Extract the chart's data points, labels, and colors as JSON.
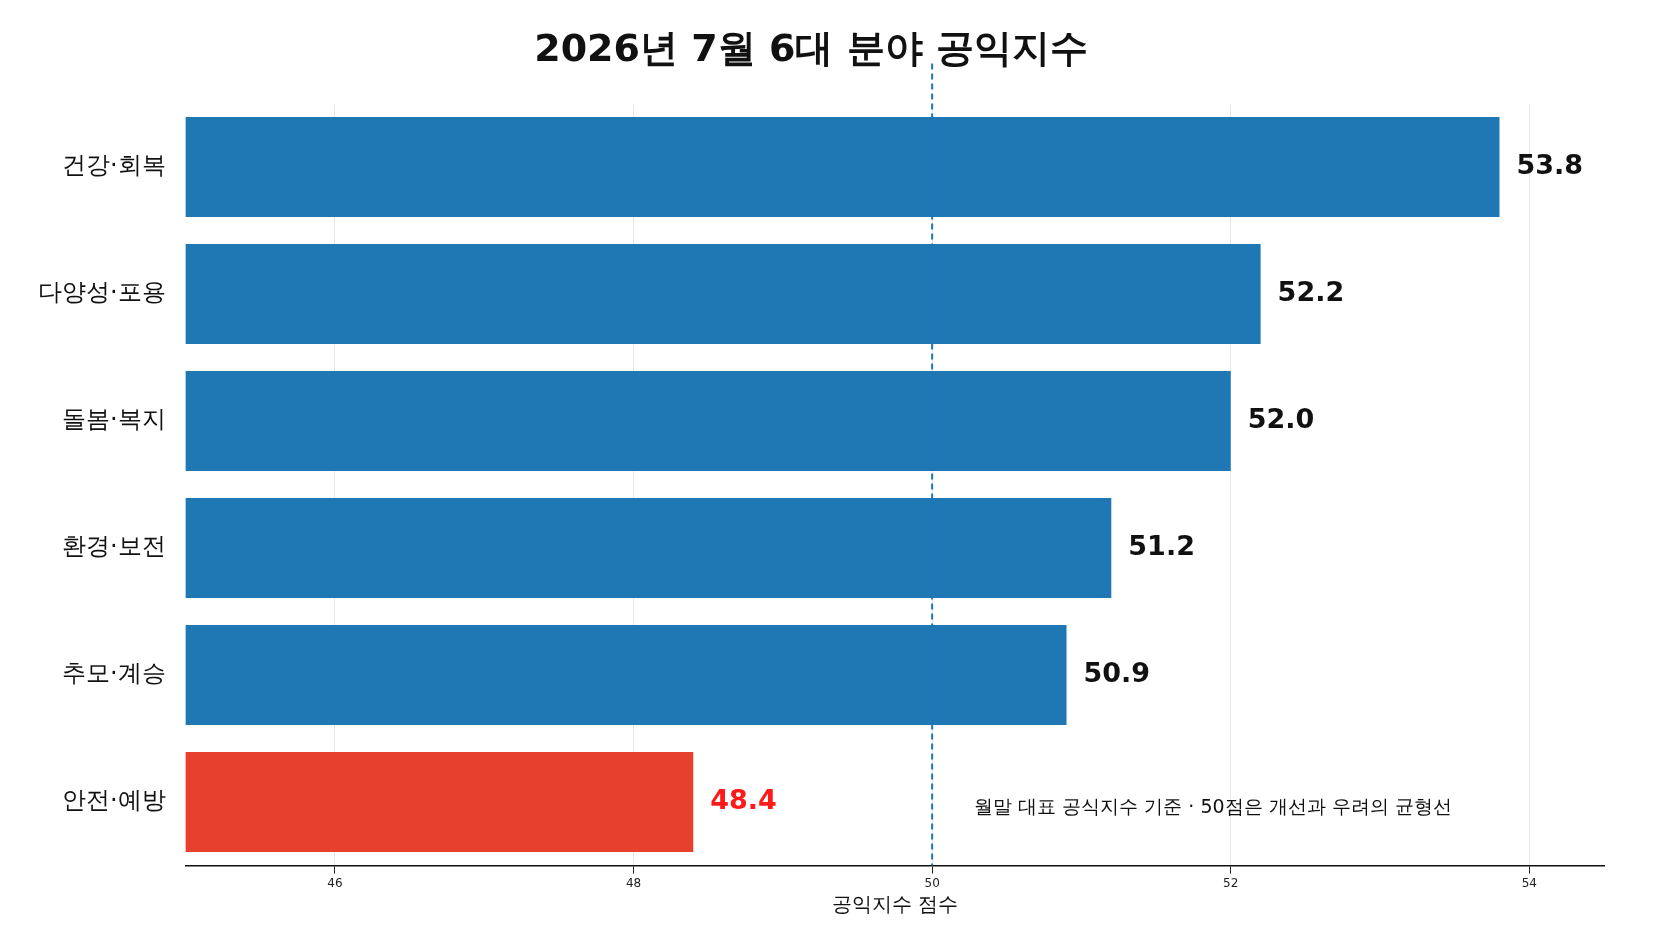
{
  "chart_data": {
    "type": "bar",
    "orientation": "horizontal",
    "title": "2026년 7월 6대 분야 공익지수",
    "xlabel": "공익지수 점수",
    "categories": [
      "건강·회복",
      "다양성·포용",
      "돌봄·복지",
      "환경·보전",
      "추모·계승",
      "안전·예방"
    ],
    "values": [
      53.8,
      52.2,
      52.0,
      51.2,
      50.9,
      48.4
    ],
    "colors": [
      "#1f77b4",
      "#1f77b4",
      "#1f77b4",
      "#1f77b4",
      "#1f77b4",
      "#e8402f"
    ],
    "value_labels": [
      "53.8",
      "52.2",
      "52.0",
      "51.2",
      "50.9",
      "48.4"
    ],
    "xlim": [
      45,
      54.5
    ],
    "xticks": [
      46,
      48,
      50,
      52,
      54
    ],
    "grid": "x",
    "legend": false,
    "ref_lines": [
      {
        "axis": "x",
        "value": 50,
        "color": "#1f77b4",
        "line_style": "dashed"
      }
    ],
    "annotations": [
      {
        "text": "월말 대표 공식지수 기준 · 50점은 개선과 우려의 균형선",
        "x": 50,
        "y": "안전·예방"
      }
    ]
  }
}
